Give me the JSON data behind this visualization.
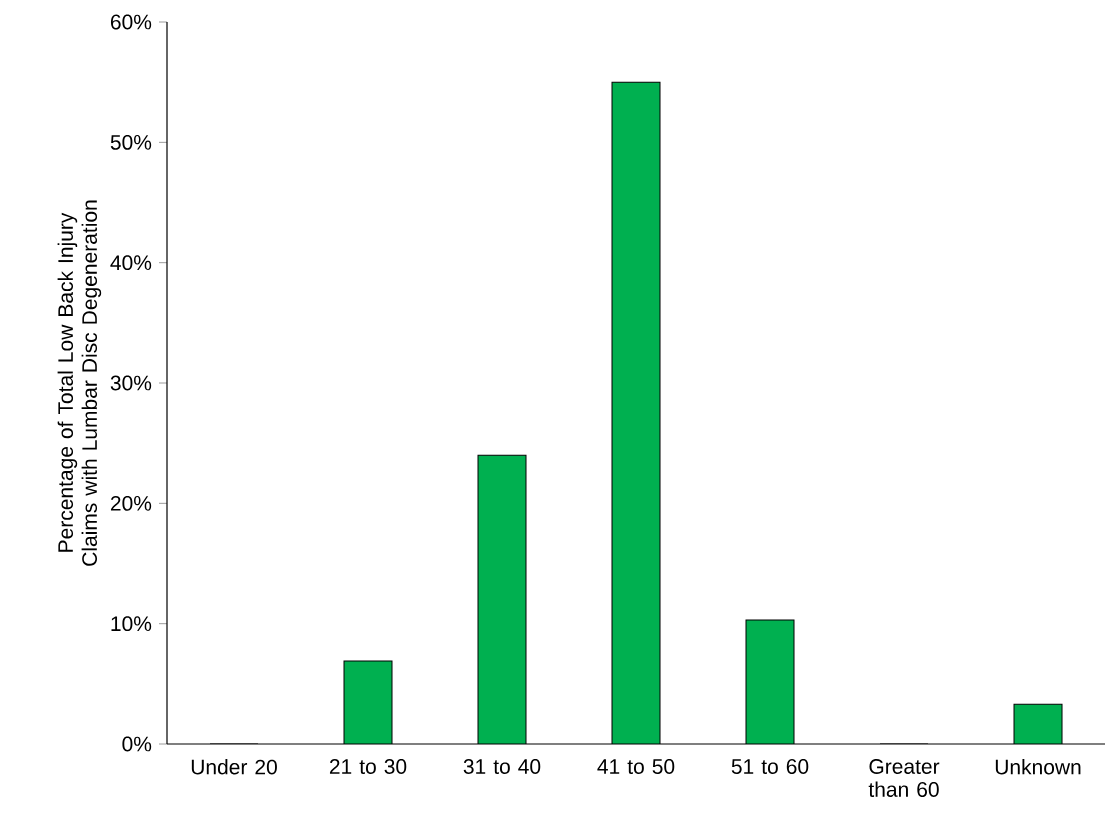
{
  "chart_data": {
    "type": "bar",
    "ylabel": "Percentage of Total Low Back Injury Claims with Lumbar Disc Degeneration",
    "categories": [
      "Under 20",
      "21 to 30",
      "31 to 40",
      "41 to 50",
      "51 to 60",
      "Greater than 60",
      "Unknown"
    ],
    "values": [
      0,
      6.9,
      24.0,
      55.0,
      10.3,
      0,
      3.3
    ],
    "color": "#00b050",
    "ylim": [
      0,
      60
    ],
    "yticks": [
      {
        "value": 0,
        "label": "0%"
      },
      {
        "value": 10,
        "label": "10%"
      },
      {
        "value": 20,
        "label": "20%"
      },
      {
        "value": 30,
        "label": "30%"
      },
      {
        "value": 40,
        "label": "40%"
      },
      {
        "value": 50,
        "label": "50%"
      },
      {
        "value": 60,
        "label": "60%"
      }
    ],
    "grid": false
  }
}
